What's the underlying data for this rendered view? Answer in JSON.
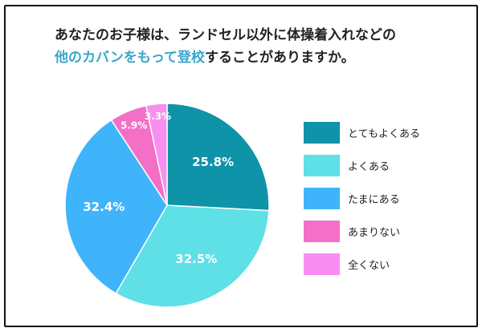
{
  "title": {
    "line1": "あなたのお子様は、ランドセル以外に体操着入れなどの",
    "line2_highlight": "他のカバンをもって登校",
    "line2_rest": "することがありますか。"
  },
  "chart_data": {
    "type": "pie",
    "title": "あなたのお子様は、ランドセル以外に体操着入れなどの他のカバンをもって登校することがありますか。",
    "slices": [
      {
        "label": "とてもよくある",
        "value": 25.8,
        "display": "25.8%",
        "color": "#0f93a8"
      },
      {
        "label": "よくある",
        "value": 32.5,
        "display": "32.5%",
        "color": "#5ee0e6"
      },
      {
        "label": "たまにある",
        "value": 32.4,
        "display": "32.4%",
        "color": "#3fb4fb"
      },
      {
        "label": "あまりない",
        "value": 5.9,
        "display": "5.9%",
        "color": "#f46fc6"
      },
      {
        "label": "全くない",
        "value": 3.3,
        "display": "3.3%",
        "color": "#f88ff0"
      }
    ],
    "start_angle_deg": 0,
    "direction": "clockwise",
    "legend_position": "right"
  }
}
